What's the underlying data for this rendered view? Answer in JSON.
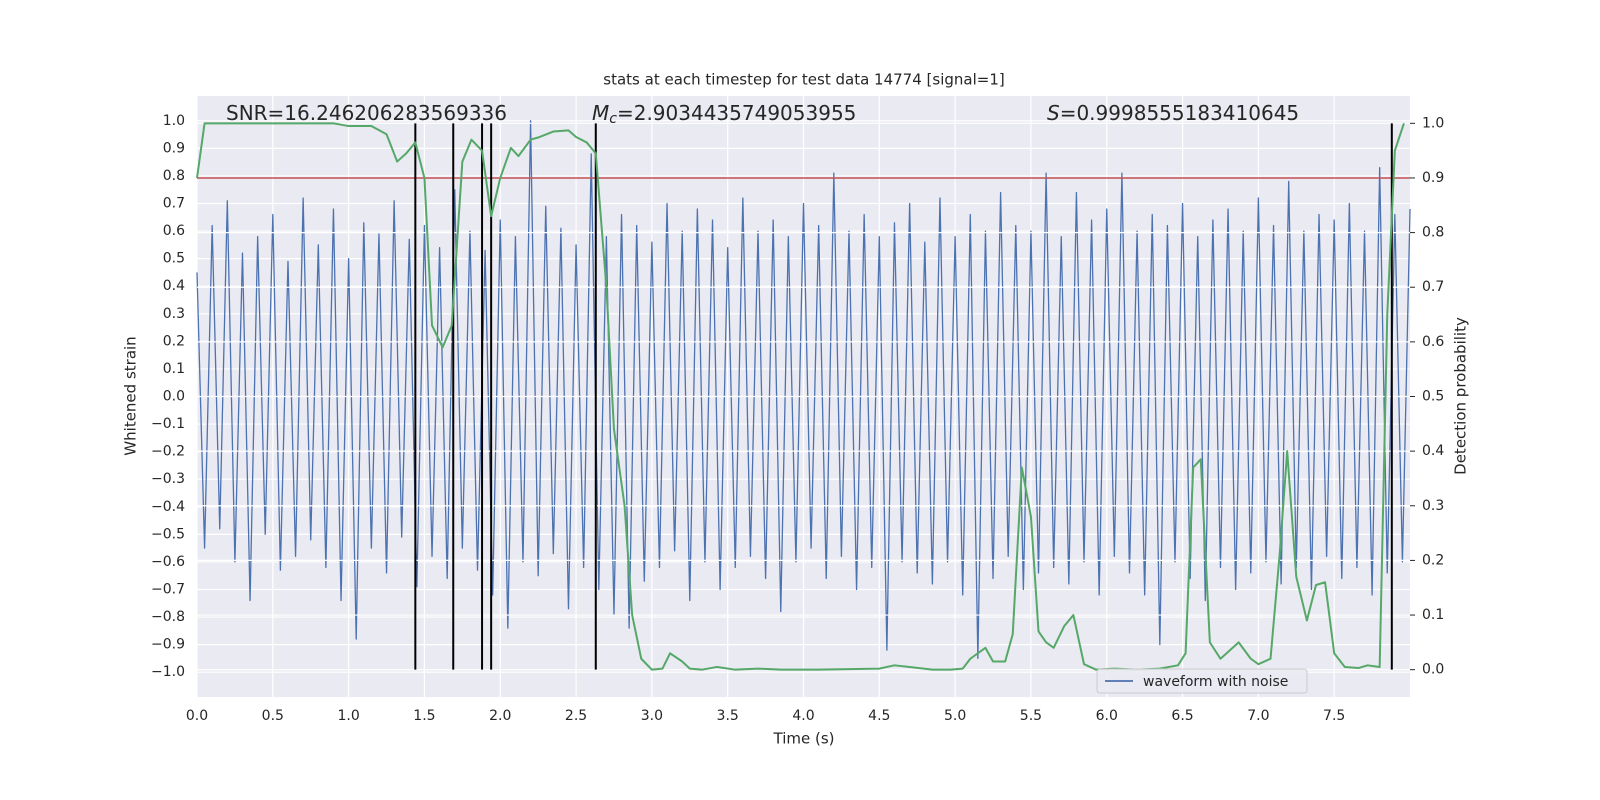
{
  "chart_data": {
    "type": "line",
    "title": "stats at each timestep for test data 14774 [signal=1]",
    "xlabel": "Time (s)",
    "ylabel": "Whitened strain",
    "y2label": "Detection probability",
    "xlim": [
      0,
      8
    ],
    "ylim": [
      -1.09,
      1.09
    ],
    "y2lim": [
      -0.05,
      1.05
    ],
    "grid": true,
    "legend": "lower right",
    "xticks": [
      {
        "value": 0,
        "label": "0.0"
      },
      {
        "value": 0.5,
        "label": "0.5"
      },
      {
        "value": 1,
        "label": "1.0"
      },
      {
        "value": 1.5,
        "label": "1.5"
      },
      {
        "value": 2,
        "label": "2.0"
      },
      {
        "value": 2.5,
        "label": "2.5"
      },
      {
        "value": 3,
        "label": "3.0"
      },
      {
        "value": 3.5,
        "label": "3.5"
      },
      {
        "value": 4,
        "label": "4.0"
      },
      {
        "value": 4.5,
        "label": "4.5"
      },
      {
        "value": 5,
        "label": "5.0"
      },
      {
        "value": 5.5,
        "label": "5.5"
      },
      {
        "value": 6,
        "label": "6.0"
      },
      {
        "value": 6.5,
        "label": "6.5"
      },
      {
        "value": 7,
        "label": "7.0"
      },
      {
        "value": 7.5,
        "label": "7.5"
      }
    ],
    "yticks": [
      {
        "value": -1,
        "label": "−1.0"
      },
      {
        "value": -0.9,
        "label": "−0.9"
      },
      {
        "value": -0.8,
        "label": "−0.8"
      },
      {
        "value": -0.7,
        "label": "−0.7"
      },
      {
        "value": -0.6,
        "label": "−0.6"
      },
      {
        "value": -0.5,
        "label": "−0.5"
      },
      {
        "value": -0.4,
        "label": "−0.4"
      },
      {
        "value": -0.3,
        "label": "−0.3"
      },
      {
        "value": -0.2,
        "label": "−0.2"
      },
      {
        "value": -0.1,
        "label": "−0.1"
      },
      {
        "value": 0,
        "label": "0.0"
      },
      {
        "value": 0.1,
        "label": "0.1"
      },
      {
        "value": 0.2,
        "label": "0.2"
      },
      {
        "value": 0.3,
        "label": "0.3"
      },
      {
        "value": 0.4,
        "label": "0.4"
      },
      {
        "value": 0.5,
        "label": "0.5"
      },
      {
        "value": 0.6,
        "label": "0.6"
      },
      {
        "value": 0.7,
        "label": "0.7"
      },
      {
        "value": 0.8,
        "label": "0.8"
      },
      {
        "value": 0.9,
        "label": "0.9"
      },
      {
        "value": 1,
        "label": "1.0"
      }
    ],
    "y2ticks": [
      {
        "value": 0,
        "label": "0.0"
      },
      {
        "value": 0.1,
        "label": "0.1"
      },
      {
        "value": 0.2,
        "label": "0.2"
      },
      {
        "value": 0.3,
        "label": "0.3"
      },
      {
        "value": 0.4,
        "label": "0.4"
      },
      {
        "value": 0.5,
        "label": "0.5"
      },
      {
        "value": 0.6,
        "label": "0.6"
      },
      {
        "value": 0.7,
        "label": "0.7"
      },
      {
        "value": 0.8,
        "label": "0.8"
      },
      {
        "value": 0.9,
        "label": "0.9"
      },
      {
        "value": 1,
        "label": "1.0"
      }
    ],
    "annotations": [
      {
        "text": "SNR=16.246206283569336"
      },
      {
        "symbol": "M",
        "subscript": "c",
        "text": "=2.9034435749053955"
      },
      {
        "symbol": "S",
        "text": "=0.9998555183410645"
      }
    ],
    "threshold": {
      "value": 0.9,
      "axis": "y2",
      "color": "#c44e52"
    },
    "vlines": {
      "x": [
        1.44,
        1.69,
        1.88,
        1.94,
        2.63,
        7.88
      ],
      "ymin": 0,
      "ymax": 1,
      "axis": "y2",
      "color": "#000000"
    },
    "series": [
      {
        "name": "waveform with noise",
        "color": "#4c72b0",
        "x": [
          0,
          0.05,
          0.1,
          0.15,
          0.2,
          0.25,
          0.3,
          0.35,
          0.4,
          0.45,
          0.5,
          0.55,
          0.6,
          0.65,
          0.7,
          0.75,
          0.8,
          0.85,
          0.9,
          0.95,
          1,
          1.05,
          1.1,
          1.15,
          1.2,
          1.25,
          1.3,
          1.35,
          1.4,
          1.45,
          1.5,
          1.55,
          1.6,
          1.65,
          1.7,
          1.75,
          1.8,
          1.85,
          1.9,
          1.95,
          2,
          2.05,
          2.1,
          2.15,
          2.2,
          2.25,
          2.3,
          2.35,
          2.4,
          2.45,
          2.5,
          2.55,
          2.6,
          2.65,
          2.7,
          2.75,
          2.8,
          2.85,
          2.9,
          2.95,
          3,
          3.05,
          3.1,
          3.15,
          3.2,
          3.25,
          3.3,
          3.35,
          3.4,
          3.45,
          3.5,
          3.55,
          3.6,
          3.65,
          3.7,
          3.75,
          3.8,
          3.85,
          3.9,
          3.95,
          4,
          4.05,
          4.1,
          4.15,
          4.2,
          4.25,
          4.3,
          4.35,
          4.4,
          4.45,
          4.5,
          4.55,
          4.6,
          4.65,
          4.7,
          4.75,
          4.8,
          4.85,
          4.9,
          4.95,
          5,
          5.05,
          5.1,
          5.15,
          5.2,
          5.25,
          5.3,
          5.35,
          5.4,
          5.45,
          5.5,
          5.55,
          5.6,
          5.65,
          5.7,
          5.75,
          5.8,
          5.85,
          5.9,
          5.95,
          6,
          6.05,
          6.1,
          6.15,
          6.2,
          6.25,
          6.3,
          6.35,
          6.4,
          6.45,
          6.5,
          6.55,
          6.6,
          6.65,
          6.7,
          6.75,
          6.8,
          6.85,
          6.9,
          6.95,
          7,
          7.05,
          7.1,
          7.15,
          7.2,
          7.25,
          7.3,
          7.35,
          7.4,
          7.45,
          7.5,
          7.55,
          7.6,
          7.65,
          7.7,
          7.75,
          7.8,
          7.85,
          7.9,
          7.95,
          8
        ],
        "values": [
          0.45,
          -0.55,
          0.62,
          -0.48,
          0.71,
          -0.6,
          0.52,
          -0.74,
          0.58,
          -0.5,
          0.66,
          -0.63,
          0.49,
          -0.58,
          0.72,
          -0.52,
          0.55,
          -0.62,
          0.68,
          -0.74,
          0.5,
          -0.88,
          0.63,
          -0.55,
          0.59,
          -0.64,
          0.71,
          -0.51,
          0.57,
          -0.69,
          0.62,
          -0.58,
          0.54,
          -0.66,
          0.75,
          -0.55,
          0.6,
          -0.63,
          0.53,
          -0.72,
          0.64,
          -0.84,
          0.58,
          -0.6,
          1.0,
          -0.65,
          0.69,
          -0.57,
          0.61,
          -0.77,
          0.55,
          -0.62,
          0.88,
          -0.7,
          0.58,
          -0.79,
          0.66,
          -0.84,
          0.62,
          -0.67,
          0.56,
          -0.62,
          0.7,
          -0.56,
          0.6,
          -0.74,
          0.68,
          -0.6,
          0.64,
          -0.7,
          0.54,
          -0.62,
          0.72,
          -0.58,
          0.6,
          -0.66,
          0.64,
          -0.78,
          0.58,
          -0.6,
          0.7,
          -0.55,
          0.62,
          -0.66,
          0.81,
          -0.58,
          0.6,
          -0.7,
          0.66,
          -0.62,
          0.58,
          -0.92,
          0.63,
          -0.6,
          0.7,
          -0.64,
          0.56,
          -0.68,
          0.72,
          -0.6,
          0.58,
          -0.72,
          0.66,
          -0.95,
          0.6,
          -0.66,
          0.74,
          -0.58,
          0.62,
          -0.7,
          0.6,
          -0.64,
          0.81,
          -0.62,
          0.58,
          -0.68,
          0.74,
          -0.6,
          0.64,
          -0.72,
          0.68,
          -0.58,
          0.81,
          -0.64,
          0.6,
          -0.72,
          0.66,
          -0.9,
          0.62,
          -0.6,
          0.7,
          -0.66,
          0.58,
          -0.74,
          0.64,
          -0.62,
          0.68,
          -0.7,
          0.6,
          -0.64,
          0.72,
          -0.6,
          0.62,
          -0.68,
          0.78,
          -0.62,
          0.6,
          -0.7,
          0.66,
          -0.58,
          0.64,
          -0.66,
          0.7,
          -0.62,
          0.6,
          -0.72,
          0.83,
          -0.64,
          0.66,
          -0.6,
          0.68
        ]
      },
      {
        "color": "#55a868",
        "axis": "y2",
        "x": [
          0,
          0.05,
          0.3,
          0.6,
          0.9,
          1,
          1.15,
          1.25,
          1.32,
          1.38,
          1.44,
          1.5,
          1.55,
          1.62,
          1.68,
          1.75,
          1.81,
          1.88,
          1.94,
          2,
          2.07,
          2.12,
          2.2,
          2.26,
          2.35,
          2.45,
          2.5,
          2.57,
          2.63,
          2.7,
          2.75,
          2.82,
          2.87,
          2.93,
          3,
          3.07,
          3.12,
          3.2,
          3.25,
          3.33,
          3.43,
          3.55,
          3.7,
          3.85,
          4.1,
          4.5,
          4.6,
          4.7,
          4.85,
          4.97,
          5.05,
          5.1,
          5.2,
          5.25,
          5.33,
          5.38,
          5.44,
          5.5,
          5.55,
          5.6,
          5.65,
          5.72,
          5.78,
          5.85,
          5.93,
          6.05,
          6.2,
          6.35,
          6.47,
          6.52,
          6.57,
          6.62,
          6.68,
          6.75,
          6.87,
          6.95,
          7,
          7.08,
          7.14,
          7.19,
          7.25,
          7.32,
          7.38,
          7.44,
          7.5,
          7.57,
          7.66,
          7.72,
          7.8,
          7.85,
          7.9,
          7.96
        ],
        "values": [
          0.9,
          1,
          1,
          1,
          1,
          0.995,
          0.995,
          0.98,
          0.93,
          0.945,
          0.965,
          0.9,
          0.63,
          0.59,
          0.63,
          0.93,
          0.97,
          0.95,
          0.83,
          0.9,
          0.955,
          0.94,
          0.97,
          0.975,
          0.985,
          0.987,
          0.975,
          0.965,
          0.945,
          0.7,
          0.44,
          0.3,
          0.1,
          0.02,
          0,
          0.002,
          0.03,
          0.015,
          0.002,
          0,
          0.005,
          0,
          0.002,
          0,
          0,
          0.002,
          0.008,
          0.005,
          0,
          0,
          0.002,
          0.02,
          0.04,
          0.015,
          0.015,
          0.065,
          0.37,
          0.28,
          0.07,
          0.05,
          0.04,
          0.08,
          0.1,
          0.01,
          0,
          0.002,
          0,
          0.002,
          0.008,
          0.03,
          0.37,
          0.385,
          0.05,
          0.02,
          0.05,
          0.02,
          0.01,
          0.02,
          0.21,
          0.4,
          0.17,
          0.09,
          0.155,
          0.16,
          0.03,
          0.005,
          0.003,
          0.008,
          0.005,
          0.65,
          0.95,
          1
        ]
      }
    ]
  }
}
